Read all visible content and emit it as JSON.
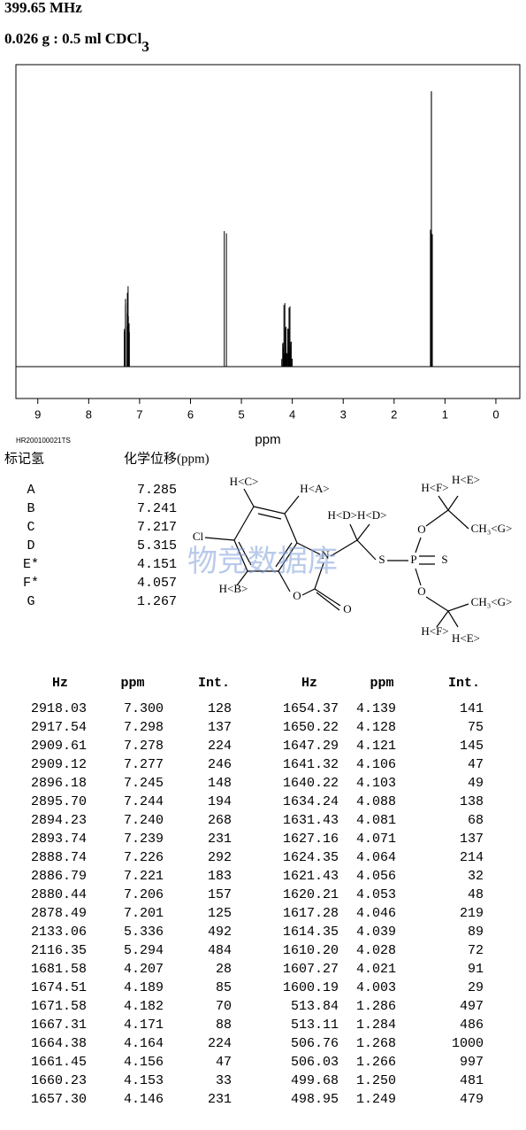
{
  "header": {
    "frequency": "399.65 MHz",
    "sample": {
      "text": "0.026 g : 0.5 ml CDCl",
      "subscript": "3"
    }
  },
  "chart_data": {
    "type": "spectrum",
    "xlabel": "ppm",
    "code": "HR200100021TS",
    "xlim": [
      9.43,
      -0.47
    ],
    "xticks": [
      9,
      8,
      7,
      6,
      5,
      4,
      3,
      2,
      1,
      0
    ],
    "ylim": [
      0,
      1000
    ],
    "color": "#000000"
  },
  "assignments": {
    "headers": [
      "标记氢",
      "化学位移(ppm)"
    ],
    "rows": [
      [
        "A",
        "7.285"
      ],
      [
        "B",
        "7.241"
      ],
      [
        "C",
        "7.217"
      ],
      [
        "D",
        "5.315"
      ],
      [
        "E*",
        "4.151"
      ],
      [
        "F*",
        "4.057"
      ],
      [
        "G",
        "1.267"
      ]
    ]
  },
  "structure": {
    "labels": [
      "H<C>",
      "H<A>",
      "H<D>H<D>",
      "Cl",
      "N",
      "S",
      "P",
      "S",
      "O",
      "H<F>",
      "H<E>",
      "CH₃<G>",
      "H<B>",
      "O",
      "O",
      "O",
      "CH₃<G>",
      "H<F>",
      "H<E>"
    ]
  },
  "watermark": "物竞数据库",
  "table": {
    "headers": [
      "Hz",
      "ppm",
      "Int.",
      "Hz",
      "ppm",
      "Int."
    ],
    "rows": [
      [
        "2918.03",
        "7.300",
        128
      ],
      [
        "2917.54",
        "7.298",
        137
      ],
      [
        "2909.61",
        "7.278",
        224
      ],
      [
        "2909.12",
        "7.277",
        246
      ],
      [
        "2896.18",
        "7.245",
        148
      ],
      [
        "2895.70",
        "7.244",
        194
      ],
      [
        "2894.23",
        "7.240",
        268
      ],
      [
        "2893.74",
        "7.239",
        231
      ],
      [
        "2888.74",
        "7.226",
        292
      ],
      [
        "2886.79",
        "7.221",
        183
      ],
      [
        "2880.44",
        "7.206",
        157
      ],
      [
        "2878.49",
        "7.201",
        125
      ],
      [
        "2133.06",
        "5.336",
        492
      ],
      [
        "2116.35",
        "5.294",
        484
      ],
      [
        "1681.58",
        "4.207",
        28
      ],
      [
        "1674.51",
        "4.189",
        85
      ],
      [
        "1671.58",
        "4.182",
        70
      ],
      [
        "1667.31",
        "4.171",
        88
      ],
      [
        "1664.38",
        "4.164",
        224
      ],
      [
        "1661.45",
        "4.156",
        47
      ],
      [
        "1660.23",
        "4.153",
        33
      ],
      [
        "1657.30",
        "4.146",
        231
      ],
      [
        "1654.37",
        "4.139",
        141
      ],
      [
        "1650.22",
        "4.128",
        75
      ],
      [
        "1647.29",
        "4.121",
        145
      ],
      [
        "1641.32",
        "4.106",
        47
      ],
      [
        "1640.22",
        "4.103",
        49
      ],
      [
        "1634.24",
        "4.088",
        138
      ],
      [
        "1631.43",
        "4.081",
        68
      ],
      [
        "1627.16",
        "4.071",
        137
      ],
      [
        "1624.35",
        "4.064",
        214
      ],
      [
        "1621.43",
        "4.056",
        32
      ],
      [
        "1620.21",
        "4.053",
        48
      ],
      [
        "1617.28",
        "4.046",
        219
      ],
      [
        "1614.35",
        "4.039",
        89
      ],
      [
        "1610.20",
        "4.028",
        72
      ],
      [
        "1607.27",
        "4.021",
        91
      ],
      [
        "1600.19",
        "4.003",
        29
      ],
      [
        "513.84",
        "1.286",
        497
      ],
      [
        "513.11",
        "1.284",
        486
      ],
      [
        "506.76",
        "1.268",
        1000
      ],
      [
        "506.03",
        "1.266",
        997
      ],
      [
        "499.68",
        "1.250",
        481
      ],
      [
        "498.95",
        "1.249",
        479
      ]
    ]
  }
}
